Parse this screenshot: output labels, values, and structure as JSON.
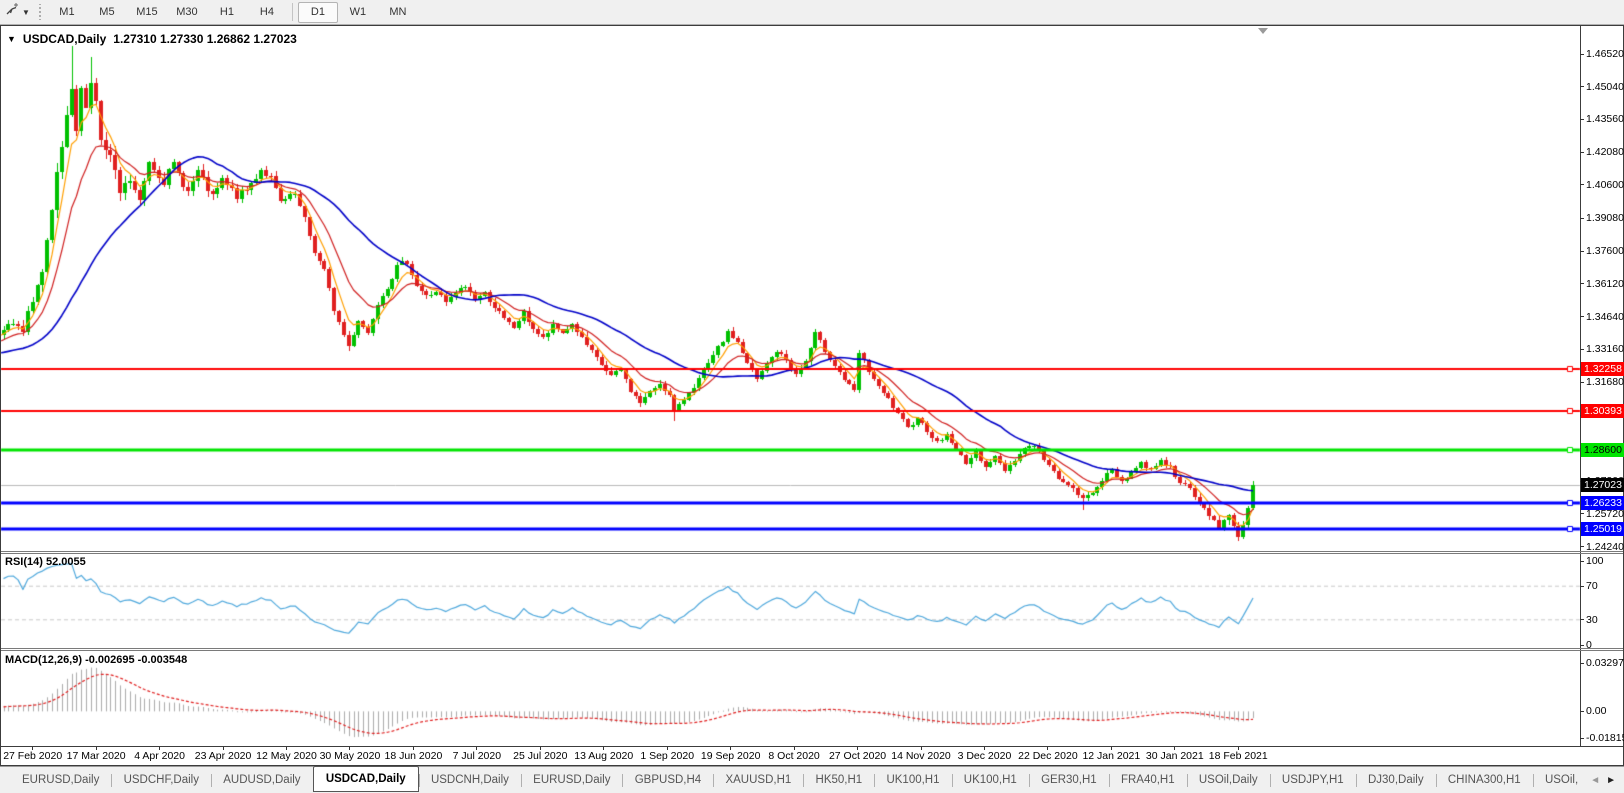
{
  "toolbar": {
    "timeframes": [
      "M1",
      "M5",
      "M15",
      "M30",
      "H1",
      "H4",
      "D1",
      "W1",
      "MN"
    ],
    "active_timeframe": "D1",
    "separator_before": "D1",
    "tool_icon": "crosshair-cursor"
  },
  "chart": {
    "symbol_title": "USDCAD,Daily",
    "ohlc_text": "1.27310 1.27330 1.26862 1.27023"
  },
  "current_price": {
    "label": "1.27023",
    "price": 1.27023
  },
  "price_axis": {
    "tick_labels": [
      "1.46520",
      "1.45040",
      "1.43560",
      "1.42080",
      "1.40600",
      "1.39080",
      "1.37600",
      "1.36120",
      "1.34640",
      "1.33160",
      "1.31680",
      "1.30180",
      "1.28680",
      "1.27200",
      "1.25720",
      "1.24240"
    ]
  },
  "rsi": {
    "label": "RSI(14) 52.0055",
    "ticks": [
      {
        "label": "100",
        "value": 100
      },
      {
        "label": "70",
        "value": 70
      },
      {
        "label": "30",
        "value": 30
      },
      {
        "label": "0",
        "value": 0
      }
    ]
  },
  "macd": {
    "label": "MACD(12,26,9) -0.002695 -0.003548",
    "ticks": [
      {
        "label": "0.032972",
        "value": 0.032972
      },
      {
        "label": "0.00",
        "value": 0
      },
      {
        "label": "-0.018154",
        "value": -0.018154
      }
    ]
  },
  "date_axis": {
    "labels": [
      "27 Feb 2020",
      "17 Mar 2020",
      "4 Apr 2020",
      "23 Apr 2020",
      "12 May 2020",
      "30 May 2020",
      "18 Jun 2020",
      "7 Jul 2020",
      "25 Jul 2020",
      "13 Aug 2020",
      "1 Sep 2020",
      "19 Sep 2020",
      "8 Oct 2020",
      "27 Oct 2020",
      "14 Nov 2020",
      "3 Dec 2020",
      "22 Dec 2020",
      "12 Jan 2021",
      "30 Jan 2021",
      "18 Feb 2021"
    ]
  },
  "tabs": {
    "items": [
      "EURUSD,Daily",
      "USDCHF,Daily",
      "AUDUSD,Daily",
      "USDCAD,Daily",
      "USDCNH,Daily",
      "EURUSD,Daily",
      "GBPUSD,H4",
      "XAUUSD,H1",
      "HK50,H1",
      "UK100,H1",
      "UK100,H1",
      "GER30,H1",
      "FRA40,H1",
      "USOil,Daily",
      "USDJPY,H1",
      "DJ30,Daily",
      "CHINA300,H1",
      "USOil,"
    ],
    "active_index": 3
  },
  "chart_data": {
    "type": "candlestick",
    "symbol": "USDCAD",
    "timeframe": "Daily",
    "current_bar_ohlc": {
      "open": 1.2731,
      "high": 1.2733,
      "low": 1.26862,
      "close": 1.27023
    },
    "price_range_note": "daily candles from 27 Feb 2020 to late Feb 2021, rally to 1.4689 high in Mar 2020, downtrend to 1.2466 low in Feb 2021",
    "horizontal_lines": [
      {
        "price": 1.32258,
        "color": "#ff0000",
        "width": 2,
        "label_text_color": "#ffffff"
      },
      {
        "price": 1.30393,
        "color": "#ff0000",
        "width": 2,
        "label_text_color": "#ffffff"
      },
      {
        "price": 1.286,
        "color": "#00e400",
        "width": 3,
        "label_text_color": "#000000"
      },
      {
        "price": 1.26233,
        "color": "#0000ff",
        "width": 3,
        "label_text_color": "#ffffff"
      },
      {
        "price": 1.25019,
        "color": "#0000ff",
        "width": 3,
        "label_text_color": "#ffffff"
      }
    ],
    "indicators": {
      "rsi": {
        "period": 14,
        "value": 52.0055,
        "dashed_levels": [
          70,
          30
        ]
      },
      "macd": {
        "fast": 12,
        "slow": 26,
        "signal": 9,
        "value": -0.002695,
        "signal_value": -0.003548
      }
    },
    "moving_averages": [
      {
        "period": 5,
        "type": "ema",
        "color": "#ff9f00"
      },
      {
        "period": 12,
        "type": "ema",
        "color": "#d02020"
      },
      {
        "period": 30,
        "type": "sma",
        "color": "#0000c8"
      }
    ],
    "colors": {
      "up": "#00c000",
      "down": "#e02020",
      "rsi_line": "#4fa8dc",
      "macd_hist": "#ababab",
      "macd_signal": "#e02020",
      "level_dash": "#c8c8c8",
      "cur_line": "#b8b8b8"
    },
    "seed": 7,
    "close_anchors": [
      [
        -60,
        1.306
      ],
      [
        -50,
        1.316
      ],
      [
        -40,
        1.325
      ],
      [
        -30,
        1.33
      ],
      [
        -22,
        1.323
      ],
      [
        -14,
        1.329
      ],
      [
        -7,
        1.334
      ],
      [
        -3,
        1.339
      ],
      [
        0,
        1.34
      ],
      [
        2,
        1.343
      ],
      [
        4,
        1.339
      ],
      [
        6,
        1.355
      ],
      [
        8,
        1.366
      ],
      [
        10,
        1.392
      ],
      [
        11,
        1.41
      ],
      [
        13,
        1.435
      ],
      [
        14,
        1.4465
      ],
      [
        15,
        1.43
      ],
      [
        16,
        1.448
      ],
      [
        17,
        1.444
      ],
      [
        18,
        1.452
      ],
      [
        19,
        1.445
      ],
      [
        20,
        1.425
      ],
      [
        22,
        1.418
      ],
      [
        24,
        1.402
      ],
      [
        26,
        1.408
      ],
      [
        28,
        1.398
      ],
      [
        30,
        1.417
      ],
      [
        33,
        1.408
      ],
      [
        35,
        1.415
      ],
      [
        38,
        1.403
      ],
      [
        40,
        1.412
      ],
      [
        43,
        1.4
      ],
      [
        45,
        1.408
      ],
      [
        48,
        1.401
      ],
      [
        50,
        1.4035
      ],
      [
        53,
        1.413
      ],
      [
        55,
        1.409
      ],
      [
        57,
        1.398
      ],
      [
        60,
        1.4015
      ],
      [
        62,
        1.39
      ],
      [
        64,
        1.376
      ],
      [
        66,
        1.367
      ],
      [
        68,
        1.35
      ],
      [
        70,
        1.338
      ],
      [
        71,
        1.333
      ],
      [
        73,
        1.345
      ],
      [
        75,
        1.339
      ],
      [
        77,
        1.353
      ],
      [
        79,
        1.36
      ],
      [
        81,
        1.369
      ],
      [
        83,
        1.3715
      ],
      [
        85,
        1.3605
      ],
      [
        87,
        1.3555
      ],
      [
        89,
        1.358
      ],
      [
        91,
        1.3525
      ],
      [
        93,
        1.357
      ],
      [
        95,
        1.36
      ],
      [
        97,
        1.3545
      ],
      [
        99,
        1.357
      ],
      [
        101,
        1.351
      ],
      [
        103,
        1.345
      ],
      [
        105,
        1.3415
      ],
      [
        107,
        1.348
      ],
      [
        109,
        1.341
      ],
      [
        111,
        1.3365
      ],
      [
        113,
        1.342
      ],
      [
        115,
        1.339
      ],
      [
        117,
        1.343
      ],
      [
        119,
        1.3365
      ],
      [
        121,
        1.33
      ],
      [
        123,
        1.3245
      ],
      [
        125,
        1.3195
      ],
      [
        127,
        1.3225
      ],
      [
        129,
        1.313
      ],
      [
        131,
        1.3075
      ],
      [
        133,
        1.312
      ],
      [
        135,
        1.3165
      ],
      [
        137,
        1.3105
      ],
      [
        138,
        1.3035
      ],
      [
        139,
        1.306
      ],
      [
        141,
        1.3125
      ],
      [
        143,
        1.318
      ],
      [
        145,
        1.325
      ],
      [
        147,
        1.332
      ],
      [
        149,
        1.339
      ],
      [
        151,
        1.335
      ],
      [
        153,
        1.325
      ],
      [
        155,
        1.318
      ],
      [
        157,
        1.325
      ],
      [
        159,
        1.331
      ],
      [
        161,
        1.327
      ],
      [
        163,
        1.32
      ],
      [
        165,
        1.326
      ],
      [
        167,
        1.3385
      ],
      [
        169,
        1.331
      ],
      [
        171,
        1.3245
      ],
      [
        173,
        1.318
      ],
      [
        175,
        1.3125
      ],
      [
        176,
        1.33
      ],
      [
        178,
        1.322
      ],
      [
        180,
        1.314
      ],
      [
        182,
        1.309
      ],
      [
        184,
        1.302
      ],
      [
        186,
        1.296
      ],
      [
        188,
        1.301
      ],
      [
        190,
        1.295
      ],
      [
        192,
        1.2895
      ],
      [
        194,
        1.293
      ],
      [
        196,
        1.286
      ],
      [
        198,
        1.2805
      ],
      [
        200,
        1.285
      ],
      [
        202,
        1.279
      ],
      [
        204,
        1.283
      ],
      [
        206,
        1.277
      ],
      [
        208,
        1.282
      ],
      [
        210,
        1.287
      ],
      [
        212,
        1.2885
      ],
      [
        214,
        1.282
      ],
      [
        216,
        1.276
      ],
      [
        218,
        1.272
      ],
      [
        220,
        1.268
      ],
      [
        222,
        1.264
      ],
      [
        224,
        1.267
      ],
      [
        226,
        1.273
      ],
      [
        228,
        1.277
      ],
      [
        230,
        1.272
      ],
      [
        232,
        1.276
      ],
      [
        234,
        1.28
      ],
      [
        236,
        1.277
      ],
      [
        238,
        1.282
      ],
      [
        240,
        1.278
      ],
      [
        242,
        1.272
      ],
      [
        244,
        1.268
      ],
      [
        246,
        1.262
      ],
      [
        248,
        1.257
      ],
      [
        250,
        1.252
      ],
      [
        252,
        1.256
      ],
      [
        253,
        1.251
      ],
      [
        254,
        1.2478
      ],
      [
        255,
        1.252
      ],
      [
        256,
        1.26
      ],
      [
        257,
        1.27023
      ]
    ],
    "vol_anchors": [
      [
        -60,
        0.0025
      ],
      [
        0,
        0.004
      ],
      [
        10,
        0.007
      ],
      [
        20,
        0.008
      ],
      [
        30,
        0.005
      ],
      [
        60,
        0.0035
      ],
      [
        100,
        0.003
      ],
      [
        140,
        0.0028
      ],
      [
        180,
        0.0025
      ],
      [
        220,
        0.0022
      ],
      [
        245,
        0.0025
      ],
      [
        252,
        0.0035
      ],
      [
        257,
        0.003
      ]
    ],
    "extremes": [
      {
        "bar": 14,
        "high": 1.4689
      },
      {
        "bar": 18,
        "high": 1.464
      },
      {
        "bar": 71,
        "low": 1.3315
      },
      {
        "bar": 138,
        "low": 1.2994
      },
      {
        "bar": 222,
        "low": 1.259
      },
      {
        "bar": 254,
        "low": 1.2466
      }
    ]
  }
}
